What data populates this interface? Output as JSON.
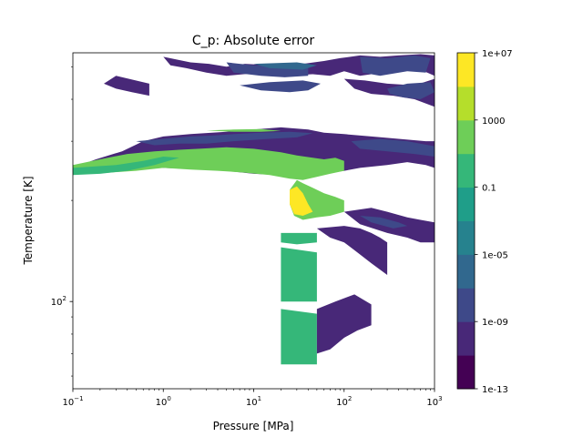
{
  "chart_data": {
    "type": "contourf",
    "title": "C_p: Absolute error",
    "xlabel": "Pressure [MPa]",
    "ylabel": "Temperature [K]",
    "xscale": "log",
    "yscale": "log",
    "xlim": [
      0.1,
      1000
    ],
    "ylim": [
      55,
      550
    ],
    "x_ticks": [
      {
        "value": 0.1,
        "base": "10",
        "exp": "−1"
      },
      {
        "value": 1,
        "base": "10",
        "exp": "0"
      },
      {
        "value": 10,
        "base": "10",
        "exp": "1"
      },
      {
        "value": 100,
        "base": "10",
        "exp": "2"
      },
      {
        "value": 1000,
        "base": "10",
        "exp": "3"
      }
    ],
    "y_ticks": [
      {
        "value": 100,
        "base": "10",
        "exp": "2"
      }
    ],
    "colorbar": {
      "scale": "log",
      "range": [
        1e-13,
        10000000.0
      ],
      "colors": [
        "#440154",
        "#482878",
        "#3e4989",
        "#31688e",
        "#26828e",
        "#1f9e89",
        "#35b779",
        "#6ece58",
        "#b5de2b",
        "#fde725"
      ],
      "tick_labels": [
        "1e-13",
        "1e-09",
        "1e-05",
        "0.1",
        "1000",
        "1e+07"
      ],
      "tick_exponents": [
        -13,
        -9,
        -5,
        -1,
        3,
        7
      ]
    },
    "regions": [
      {
        "level": 1,
        "polygon": [
          [
            1.0,
            535
          ],
          [
            2.0,
            515
          ],
          [
            3.2,
            510
          ],
          [
            5.0,
            500
          ],
          [
            8.0,
            510
          ],
          [
            16,
            505
          ],
          [
            35,
            510
          ],
          [
            60,
            520
          ],
          [
            90,
            530
          ],
          [
            150,
            540
          ],
          [
            250,
            535
          ],
          [
            400,
            540
          ],
          [
            700,
            545
          ],
          [
            1000,
            540
          ],
          [
            1000,
            470
          ],
          [
            700,
            490
          ],
          [
            500,
            495
          ],
          [
            300,
            480
          ],
          [
            200,
            475
          ],
          [
            150,
            470
          ],
          [
            100,
            485
          ],
          [
            70,
            470
          ],
          [
            45,
            475
          ],
          [
            20,
            470
          ],
          [
            12,
            480
          ],
          [
            5,
            470
          ],
          [
            3,
            480
          ],
          [
            1.8,
            495
          ],
          [
            1.2,
            505
          ]
        ]
      },
      {
        "level": 1,
        "polygon": [
          [
            0.3,
            470
          ],
          [
            0.7,
            445
          ],
          [
            0.7,
            410
          ],
          [
            0.45,
            420
          ],
          [
            0.3,
            430
          ],
          [
            0.22,
            445
          ]
        ]
      },
      {
        "level": 1,
        "polygon": [
          [
            100,
            460
          ],
          [
            170,
            455
          ],
          [
            300,
            445
          ],
          [
            600,
            440
          ],
          [
            1000,
            460
          ],
          [
            1000,
            380
          ],
          [
            600,
            400
          ],
          [
            350,
            410
          ],
          [
            200,
            415
          ],
          [
            130,
            430
          ]
        ]
      },
      {
        "level": 2,
        "polygon": [
          [
            5.0,
            515
          ],
          [
            10,
            505
          ],
          [
            20,
            500
          ],
          [
            40,
            505
          ],
          [
            40,
            470
          ],
          [
            22,
            465
          ],
          [
            12,
            470
          ],
          [
            6,
            480
          ]
        ]
      },
      {
        "level": 2,
        "polygon": [
          [
            150,
            535
          ],
          [
            300,
            530
          ],
          [
            600,
            540
          ],
          [
            900,
            530
          ],
          [
            800,
            480
          ],
          [
            500,
            485
          ],
          [
            250,
            470
          ],
          [
            160,
            480
          ]
        ]
      },
      {
        "level": 3,
        "polygon": [
          [
            10,
            510
          ],
          [
            30,
            515
          ],
          [
            50,
            505
          ],
          [
            35,
            490
          ],
          [
            15,
            495
          ]
        ]
      },
      {
        "level": 2,
        "polygon": [
          [
            7,
            440
          ],
          [
            15,
            450
          ],
          [
            35,
            455
          ],
          [
            55,
            445
          ],
          [
            40,
            425
          ],
          [
            25,
            420
          ],
          [
            12,
            425
          ]
        ]
      },
      {
        "level": 2,
        "polygon": [
          [
            300,
            430
          ],
          [
            500,
            445
          ],
          [
            900,
            450
          ],
          [
            1000,
            420
          ],
          [
            700,
            400
          ],
          [
            450,
            405
          ],
          [
            320,
            415
          ]
        ]
      },
      {
        "level": 1,
        "polygon": [
          [
            0.1,
            250
          ],
          [
            0.18,
            265
          ],
          [
            0.35,
            280
          ],
          [
            0.6,
            300
          ],
          [
            1.0,
            310
          ],
          [
            2,
            315
          ],
          [
            5,
            320
          ],
          [
            10,
            325
          ],
          [
            20,
            330
          ],
          [
            40,
            325
          ],
          [
            60,
            318
          ],
          [
            100,
            315
          ],
          [
            200,
            310
          ],
          [
            400,
            305
          ],
          [
            800,
            300
          ],
          [
            1000,
            300
          ],
          [
            1000,
            250
          ],
          [
            800,
            255
          ],
          [
            500,
            260
          ],
          [
            300,
            255
          ],
          [
            150,
            250
          ],
          [
            100,
            245
          ],
          [
            60,
            240
          ],
          [
            35,
            235
          ],
          [
            20,
            238
          ],
          [
            10,
            240
          ],
          [
            5,
            245
          ],
          [
            2,
            248
          ],
          [
            1,
            250
          ],
          [
            0.5,
            248
          ],
          [
            0.25,
            250
          ]
        ]
      },
      {
        "level": 2,
        "polygon": [
          [
            0.5,
            300
          ],
          [
            1.0,
            305
          ],
          [
            2,
            310
          ],
          [
            3.5,
            312
          ],
          [
            6,
            315
          ],
          [
            12,
            318
          ],
          [
            25,
            320
          ],
          [
            45,
            317
          ],
          [
            30,
            308
          ],
          [
            15,
            305
          ],
          [
            6,
            300
          ],
          [
            3,
            295
          ],
          [
            1.5,
            295
          ],
          [
            0.8,
            292
          ]
        ]
      },
      {
        "level": 2,
        "polygon": [
          [
            120,
            300
          ],
          [
            250,
            305
          ],
          [
            500,
            300
          ],
          [
            1000,
            290
          ],
          [
            1000,
            270
          ],
          [
            600,
            275
          ],
          [
            300,
            280
          ],
          [
            150,
            285
          ]
        ]
      },
      {
        "level": 7,
        "polygon": [
          [
            0.1,
            255
          ],
          [
            0.2,
            265
          ],
          [
            0.4,
            275
          ],
          [
            0.8,
            280
          ],
          [
            1.5,
            283
          ],
          [
            2.5,
            285
          ],
          [
            5,
            288
          ],
          [
            10,
            285
          ],
          [
            20,
            278
          ],
          [
            30,
            272
          ],
          [
            45,
            268
          ],
          [
            60,
            265
          ],
          [
            80,
            268
          ],
          [
            100,
            262
          ],
          [
            100,
            245
          ],
          [
            70,
            240
          ],
          [
            50,
            235
          ],
          [
            35,
            230
          ],
          [
            25,
            232
          ],
          [
            15,
            238
          ],
          [
            8,
            242
          ],
          [
            4,
            245
          ],
          [
            2,
            247
          ],
          [
            1,
            250
          ],
          [
            0.5,
            245
          ],
          [
            0.25,
            242
          ],
          [
            0.15,
            240
          ],
          [
            0.1,
            240
          ]
        ]
      },
      {
        "level": 6,
        "polygon": [
          [
            0.1,
            250
          ],
          [
            0.3,
            255
          ],
          [
            0.6,
            262
          ],
          [
            1.0,
            270
          ],
          [
            1.5,
            268
          ],
          [
            0.8,
            255
          ],
          [
            0.4,
            245
          ],
          [
            0.2,
            240
          ],
          [
            0.1,
            238
          ]
        ]
      },
      {
        "level": 7,
        "polygon": [
          [
            3,
            323
          ],
          [
            6,
            325
          ],
          [
            12,
            326
          ],
          [
            20,
            322
          ],
          [
            12,
            320
          ],
          [
            6,
            320
          ]
        ]
      },
      {
        "level": 7,
        "polygon": [
          [
            30,
            230
          ],
          [
            35,
            225
          ],
          [
            45,
            218
          ],
          [
            60,
            210
          ],
          [
            80,
            205
          ],
          [
            100,
            200
          ],
          [
            100,
            185
          ],
          [
            70,
            180
          ],
          [
            50,
            178
          ],
          [
            35,
            175
          ],
          [
            28,
            180
          ],
          [
            25,
            195
          ],
          [
            25,
            215
          ]
        ]
      },
      {
        "level": 9,
        "polygon": [
          [
            25,
            215
          ],
          [
            30,
            220
          ],
          [
            35,
            210
          ],
          [
            40,
            195
          ],
          [
            45,
            185
          ],
          [
            35,
            180
          ],
          [
            28,
            182
          ],
          [
            25,
            195
          ]
        ]
      },
      {
        "level": 6,
        "polygon": [
          [
            20,
            160
          ],
          [
            50,
            160
          ],
          [
            50,
            150
          ],
          [
            30,
            148
          ],
          [
            20,
            150
          ]
        ]
      },
      {
        "level": 6,
        "polygon": [
          [
            20,
            145
          ],
          [
            50,
            140
          ],
          [
            50,
            100
          ],
          [
            20,
            100
          ]
        ]
      },
      {
        "level": 6,
        "polygon": [
          [
            20,
            95
          ],
          [
            50,
            92
          ],
          [
            50,
            65
          ],
          [
            20,
            65
          ]
        ]
      },
      {
        "level": 1,
        "polygon": [
          [
            50,
            165
          ],
          [
            100,
            168
          ],
          [
            150,
            165
          ],
          [
            200,
            160
          ],
          [
            250,
            155
          ],
          [
            300,
            150
          ],
          [
            300,
            120
          ],
          [
            200,
            130
          ],
          [
            140,
            140
          ],
          [
            100,
            150
          ],
          [
            70,
            155
          ]
        ]
      },
      {
        "level": 1,
        "polygon": [
          [
            100,
            185
          ],
          [
            200,
            190
          ],
          [
            300,
            185
          ],
          [
            500,
            178
          ],
          [
            700,
            175
          ],
          [
            1000,
            172
          ],
          [
            1000,
            150
          ],
          [
            700,
            150
          ],
          [
            500,
            155
          ],
          [
            300,
            160
          ],
          [
            150,
            170
          ]
        ]
      },
      {
        "level": 1,
        "polygon": [
          [
            50,
            95
          ],
          [
            80,
            100
          ],
          [
            130,
            105
          ],
          [
            200,
            98
          ],
          [
            200,
            85
          ],
          [
            140,
            82
          ],
          [
            100,
            78
          ],
          [
            70,
            72
          ],
          [
            50,
            70
          ]
        ]
      },
      {
        "level": 2,
        "polygon": [
          [
            150,
            180
          ],
          [
            250,
            178
          ],
          [
            400,
            172
          ],
          [
            500,
            168
          ],
          [
            350,
            165
          ],
          [
            200,
            172
          ]
        ]
      }
    ]
  }
}
